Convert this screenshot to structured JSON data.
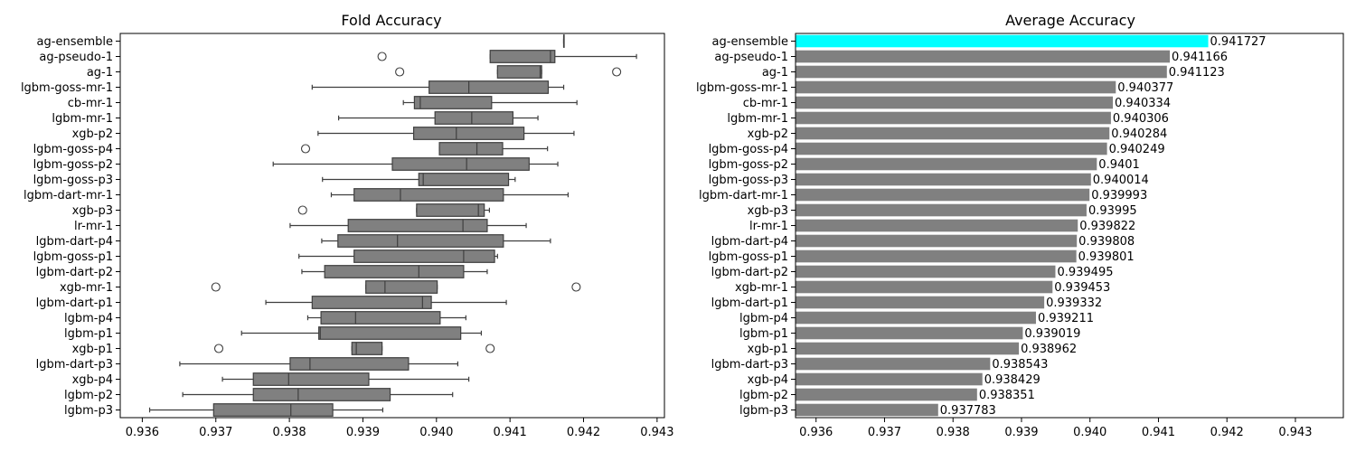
{
  "chart_data": [
    {
      "type": "box",
      "title": "Fold Accuracy",
      "xlabel": "",
      "ylabel": "",
      "xlim": [
        0.9357,
        0.9431
      ],
      "xticks": [
        "0.936",
        "0.937",
        "0.938",
        "0.939",
        "0.940",
        "0.941",
        "0.942",
        "0.943"
      ],
      "box_color": "#808080",
      "categories": [
        "ag-ensemble",
        "ag-pseudo-1",
        "ag-1",
        "lgbm-goss-mr-1",
        "cb-mr-1",
        "lgbm-mr-1",
        "xgb-p2",
        "lgbm-goss-p4",
        "lgbm-goss-p2",
        "lgbm-goss-p3",
        "lgbm-dart-mr-1",
        "xgb-p3",
        "lr-mr-1",
        "lgbm-dart-p4",
        "lgbm-goss-p1",
        "lgbm-dart-p2",
        "xgb-mr-1",
        "lgbm-dart-p1",
        "lgbm-p4",
        "lgbm-p1",
        "xgb-p1",
        "lgbm-dart-p3",
        "xgb-p4",
        "lgbm-p2",
        "lgbm-p3"
      ],
      "boxes": [
        {
          "min": 0.94173,
          "q1": 0.94173,
          "median": 0.94173,
          "q3": 0.94173,
          "max": 0.94173,
          "outliers": []
        },
        {
          "min": 0.94073,
          "q1": 0.94073,
          "median": 0.94155,
          "q3": 0.94161,
          "max": 0.94272,
          "outliers": [
            0.93926
          ]
        },
        {
          "min": 0.94083,
          "q1": 0.94083,
          "median": 0.94141,
          "q3": 0.94143,
          "max": 0.94143,
          "outliers": [
            0.9395,
            0.94245
          ]
        },
        {
          "min": 0.93831,
          "q1": 0.9399,
          "median": 0.94044,
          "q3": 0.94152,
          "max": 0.94173,
          "outliers": []
        },
        {
          "min": 0.93955,
          "q1": 0.9397,
          "median": 0.93978,
          "q3": 0.94075,
          "max": 0.94191,
          "outliers": []
        },
        {
          "min": 0.93867,
          "q1": 0.93998,
          "median": 0.94048,
          "q3": 0.94104,
          "max": 0.94138,
          "outliers": []
        },
        {
          "min": 0.93839,
          "q1": 0.93969,
          "median": 0.94027,
          "q3": 0.94119,
          "max": 0.94187,
          "outliers": []
        },
        {
          "min": 0.94004,
          "q1": 0.94004,
          "median": 0.94055,
          "q3": 0.9409,
          "max": 0.94151,
          "outliers": [
            0.93822
          ]
        },
        {
          "min": 0.93778,
          "q1": 0.9394,
          "median": 0.94041,
          "q3": 0.94126,
          "max": 0.94165,
          "outliers": []
        },
        {
          "min": 0.93845,
          "q1": 0.93976,
          "median": 0.93982,
          "q3": 0.94098,
          "max": 0.94107,
          "outliers": []
        },
        {
          "min": 0.93857,
          "q1": 0.93888,
          "median": 0.93951,
          "q3": 0.94091,
          "max": 0.94179,
          "outliers": []
        },
        {
          "min": 0.93973,
          "q1": 0.93973,
          "median": 0.94057,
          "q3": 0.94065,
          "max": 0.94072,
          "outliers": [
            0.93818
          ]
        },
        {
          "min": 0.93801,
          "q1": 0.9388,
          "median": 0.94036,
          "q3": 0.94069,
          "max": 0.94122,
          "outliers": []
        },
        {
          "min": 0.93844,
          "q1": 0.93866,
          "median": 0.93947,
          "q3": 0.94091,
          "max": 0.94155,
          "outliers": []
        },
        {
          "min": 0.93813,
          "q1": 0.93888,
          "median": 0.94037,
          "q3": 0.94079,
          "max": 0.94083,
          "outliers": []
        },
        {
          "min": 0.93817,
          "q1": 0.93848,
          "median": 0.93976,
          "q3": 0.94037,
          "max": 0.94069,
          "outliers": []
        },
        {
          "min": 0.93904,
          "q1": 0.93904,
          "median": 0.9393,
          "q3": 0.94001,
          "max": 0.94001,
          "outliers": [
            0.937,
            0.9419
          ]
        },
        {
          "min": 0.93768,
          "q1": 0.93831,
          "median": 0.93981,
          "q3": 0.93993,
          "max": 0.94095,
          "outliers": []
        },
        {
          "min": 0.93825,
          "q1": 0.93843,
          "median": 0.9389,
          "q3": 0.94005,
          "max": 0.9404,
          "outliers": []
        },
        {
          "min": 0.93735,
          "q1": 0.9384,
          "median": 0.93842,
          "q3": 0.94033,
          "max": 0.94061,
          "outliers": []
        },
        {
          "min": 0.93885,
          "q1": 0.93885,
          "median": 0.93891,
          "q3": 0.93926,
          "max": 0.93926,
          "outliers": [
            0.93704,
            0.94073
          ]
        },
        {
          "min": 0.93651,
          "q1": 0.93801,
          "median": 0.93828,
          "q3": 0.93962,
          "max": 0.94029,
          "outliers": []
        },
        {
          "min": 0.93709,
          "q1": 0.93751,
          "median": 0.93799,
          "q3": 0.93908,
          "max": 0.94044,
          "outliers": []
        },
        {
          "min": 0.93655,
          "q1": 0.93751,
          "median": 0.93812,
          "q3": 0.93937,
          "max": 0.94022,
          "outliers": []
        },
        {
          "min": 0.9361,
          "q1": 0.93697,
          "median": 0.93802,
          "q3": 0.93859,
          "max": 0.93927,
          "outliers": []
        }
      ]
    },
    {
      "type": "bar",
      "orientation": "horizontal",
      "title": "Average Accuracy",
      "xlabel": "",
      "ylabel": "",
      "xlim": [
        0.9357,
        0.9437
      ],
      "xticks": [
        "0.936",
        "0.937",
        "0.938",
        "0.939",
        "0.940",
        "0.941",
        "0.942",
        "0.943"
      ],
      "bar_color": "#808080",
      "highlight_color": "#00ffff",
      "highlight_index": 0,
      "categories": [
        "ag-ensemble",
        "ag-pseudo-1",
        "ag-1",
        "lgbm-goss-mr-1",
        "cb-mr-1",
        "lgbm-mr-1",
        "xgb-p2",
        "lgbm-goss-p4",
        "lgbm-goss-p2",
        "lgbm-goss-p3",
        "lgbm-dart-mr-1",
        "xgb-p3",
        "lr-mr-1",
        "lgbm-dart-p4",
        "lgbm-goss-p1",
        "lgbm-dart-p2",
        "xgb-mr-1",
        "lgbm-dart-p1",
        "lgbm-p4",
        "lgbm-p1",
        "xgb-p1",
        "lgbm-dart-p3",
        "xgb-p4",
        "lgbm-p2",
        "lgbm-p3"
      ],
      "values": [
        0.941727,
        0.941166,
        0.941123,
        0.940377,
        0.940334,
        0.940306,
        0.940284,
        0.940249,
        0.9401,
        0.940014,
        0.939993,
        0.93995,
        0.939822,
        0.939808,
        0.939801,
        0.939495,
        0.939453,
        0.939332,
        0.939211,
        0.939019,
        0.938962,
        0.938543,
        0.938429,
        0.938351,
        0.937783
      ],
      "value_labels": [
        "0.941727",
        "0.941166",
        "0.941123",
        "0.940377",
        "0.940334",
        "0.940306",
        "0.940284",
        "0.940249",
        "0.9401",
        "0.940014",
        "0.939993",
        "0.93995",
        "0.939822",
        "0.939808",
        "0.939801",
        "0.939495",
        "0.939453",
        "0.939332",
        "0.939211",
        "0.939019",
        "0.938962",
        "0.938543",
        "0.938429",
        "0.938351",
        "0.937783"
      ]
    }
  ]
}
